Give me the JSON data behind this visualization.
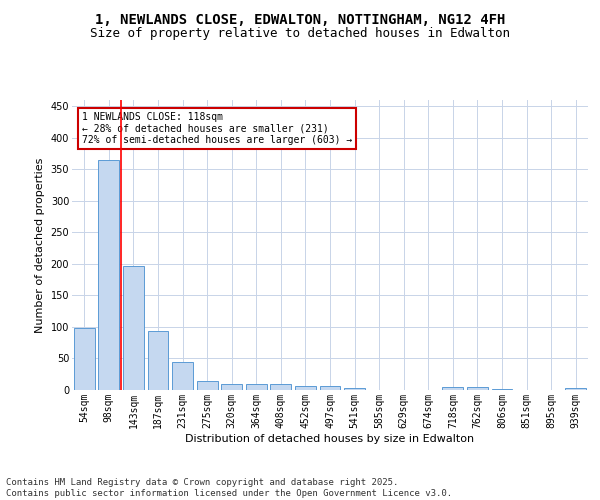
{
  "title": "1, NEWLANDS CLOSE, EDWALTON, NOTTINGHAM, NG12 4FH",
  "subtitle": "Size of property relative to detached houses in Edwalton",
  "xlabel": "Distribution of detached houses by size in Edwalton",
  "ylabel": "Number of detached properties",
  "categories": [
    "54sqm",
    "98sqm",
    "143sqm",
    "187sqm",
    "231sqm",
    "275sqm",
    "320sqm",
    "364sqm",
    "408sqm",
    "452sqm",
    "497sqm",
    "541sqm",
    "585sqm",
    "629sqm",
    "674sqm",
    "718sqm",
    "762sqm",
    "806sqm",
    "851sqm",
    "895sqm",
    "939sqm"
  ],
  "values": [
    98,
    365,
    196,
    93,
    45,
    14,
    10,
    9,
    10,
    6,
    6,
    3,
    0,
    0,
    0,
    5,
    4,
    2,
    0,
    0,
    3
  ],
  "bar_color": "#c5d8f0",
  "bar_edge_color": "#5b9bd5",
  "red_line_x": 1.5,
  "annotation_text": "1 NEWLANDS CLOSE: 118sqm\n← 28% of detached houses are smaller (231)\n72% of semi-detached houses are larger (603) →",
  "annotation_box_color": "#ffffff",
  "annotation_box_edge_color": "#cc0000",
  "ylim": [
    0,
    460
  ],
  "yticks": [
    0,
    50,
    100,
    150,
    200,
    250,
    300,
    350,
    400,
    450
  ],
  "footer": "Contains HM Land Registry data © Crown copyright and database right 2025.\nContains public sector information licensed under the Open Government Licence v3.0.",
  "background_color": "#ffffff",
  "grid_color": "#c8d4e8",
  "title_fontsize": 10,
  "subtitle_fontsize": 9,
  "axis_label_fontsize": 8,
  "tick_fontsize": 7,
  "footer_fontsize": 6.5
}
